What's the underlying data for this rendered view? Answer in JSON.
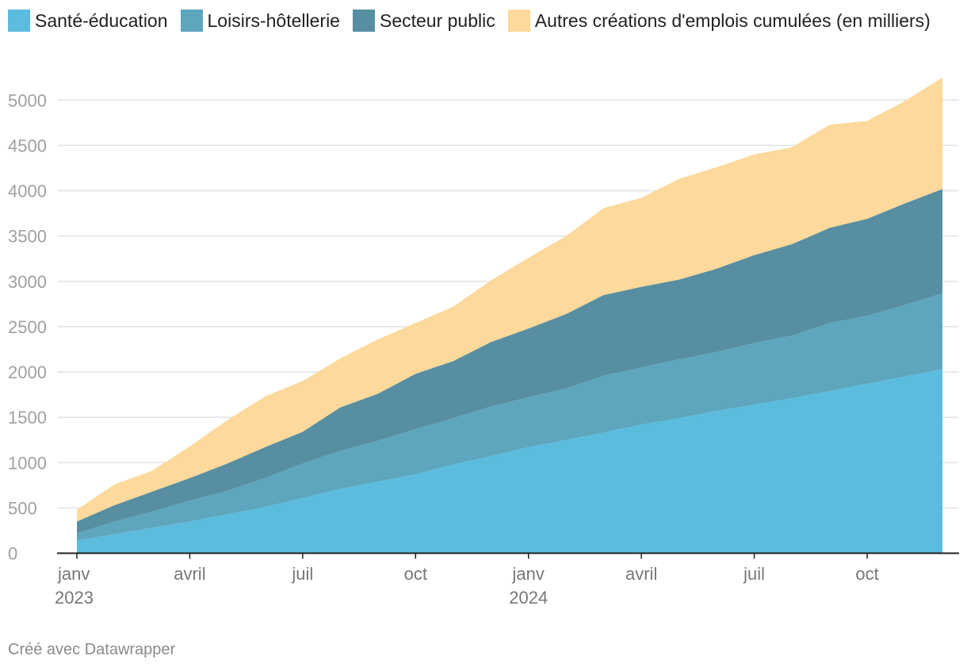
{
  "chart_data": {
    "type": "area",
    "stacked": true,
    "title": "",
    "ylabel": "",
    "xlabel": "",
    "ylim": [
      0,
      5250
    ],
    "yticks": [
      0,
      500,
      1000,
      1500,
      2000,
      2500,
      3000,
      3500,
      4000,
      4500,
      5000
    ],
    "x": [
      "2023-01",
      "2023-02",
      "2023-03",
      "2023-04",
      "2023-05",
      "2023-06",
      "2023-07",
      "2023-08",
      "2023-09",
      "2023-10",
      "2023-11",
      "2023-12",
      "2024-01",
      "2024-02",
      "2024-03",
      "2024-04",
      "2024-05",
      "2024-06",
      "2024-07",
      "2024-08",
      "2024-09",
      "2024-10",
      "2024-11",
      "2024-12"
    ],
    "x_ticks": [
      {
        "index": 0,
        "label": "janv",
        "year": "2023"
      },
      {
        "index": 3,
        "label": "avril",
        "year": ""
      },
      {
        "index": 6,
        "label": "juil",
        "year": ""
      },
      {
        "index": 9,
        "label": "oct",
        "year": ""
      },
      {
        "index": 12,
        "label": "janv",
        "year": "2024"
      },
      {
        "index": 15,
        "label": "avril",
        "year": ""
      },
      {
        "index": 18,
        "label": "juil",
        "year": ""
      },
      {
        "index": 21,
        "label": "oct",
        "year": ""
      }
    ],
    "series": [
      {
        "name": "Santé-éducation",
        "color": "#5bbcdd",
        "values": [
          140,
          210,
          280,
          350,
          430,
          510,
          610,
          710,
          790,
          870,
          980,
          1070,
          1170,
          1250,
          1330,
          1420,
          1490,
          1570,
          1640,
          1710,
          1790,
          1870,
          1950,
          2030
        ]
      },
      {
        "name": "Loisirs-hôtellerie",
        "color": "#5ea6bd",
        "values": [
          80,
          140,
          180,
          230,
          260,
          320,
          380,
          420,
          450,
          500,
          510,
          550,
          550,
          570,
          630,
          630,
          650,
          650,
          680,
          690,
          750,
          750,
          790,
          840
        ]
      },
      {
        "name": "Secteur public",
        "color": "#588ea1",
        "values": [
          130,
          180,
          220,
          250,
          300,
          340,
          350,
          480,
          520,
          610,
          630,
          710,
          760,
          820,
          890,
          890,
          880,
          920,
          970,
          1010,
          1050,
          1070,
          1120,
          1150
        ]
      },
      {
        "name": "Autres créations d'emplois cumulées (en milliers)",
        "color": "#fdd99b",
        "values": [
          130,
          230,
          230,
          350,
          480,
          560,
          560,
          540,
          600,
          560,
          600,
          680,
          780,
          860,
          960,
          980,
          1110,
          1120,
          1110,
          1070,
          1140,
          1080,
          1130,
          1230
        ]
      }
    ],
    "legend_position": "top-left"
  },
  "footer": {
    "credit": "Créé avec Datawrapper"
  }
}
